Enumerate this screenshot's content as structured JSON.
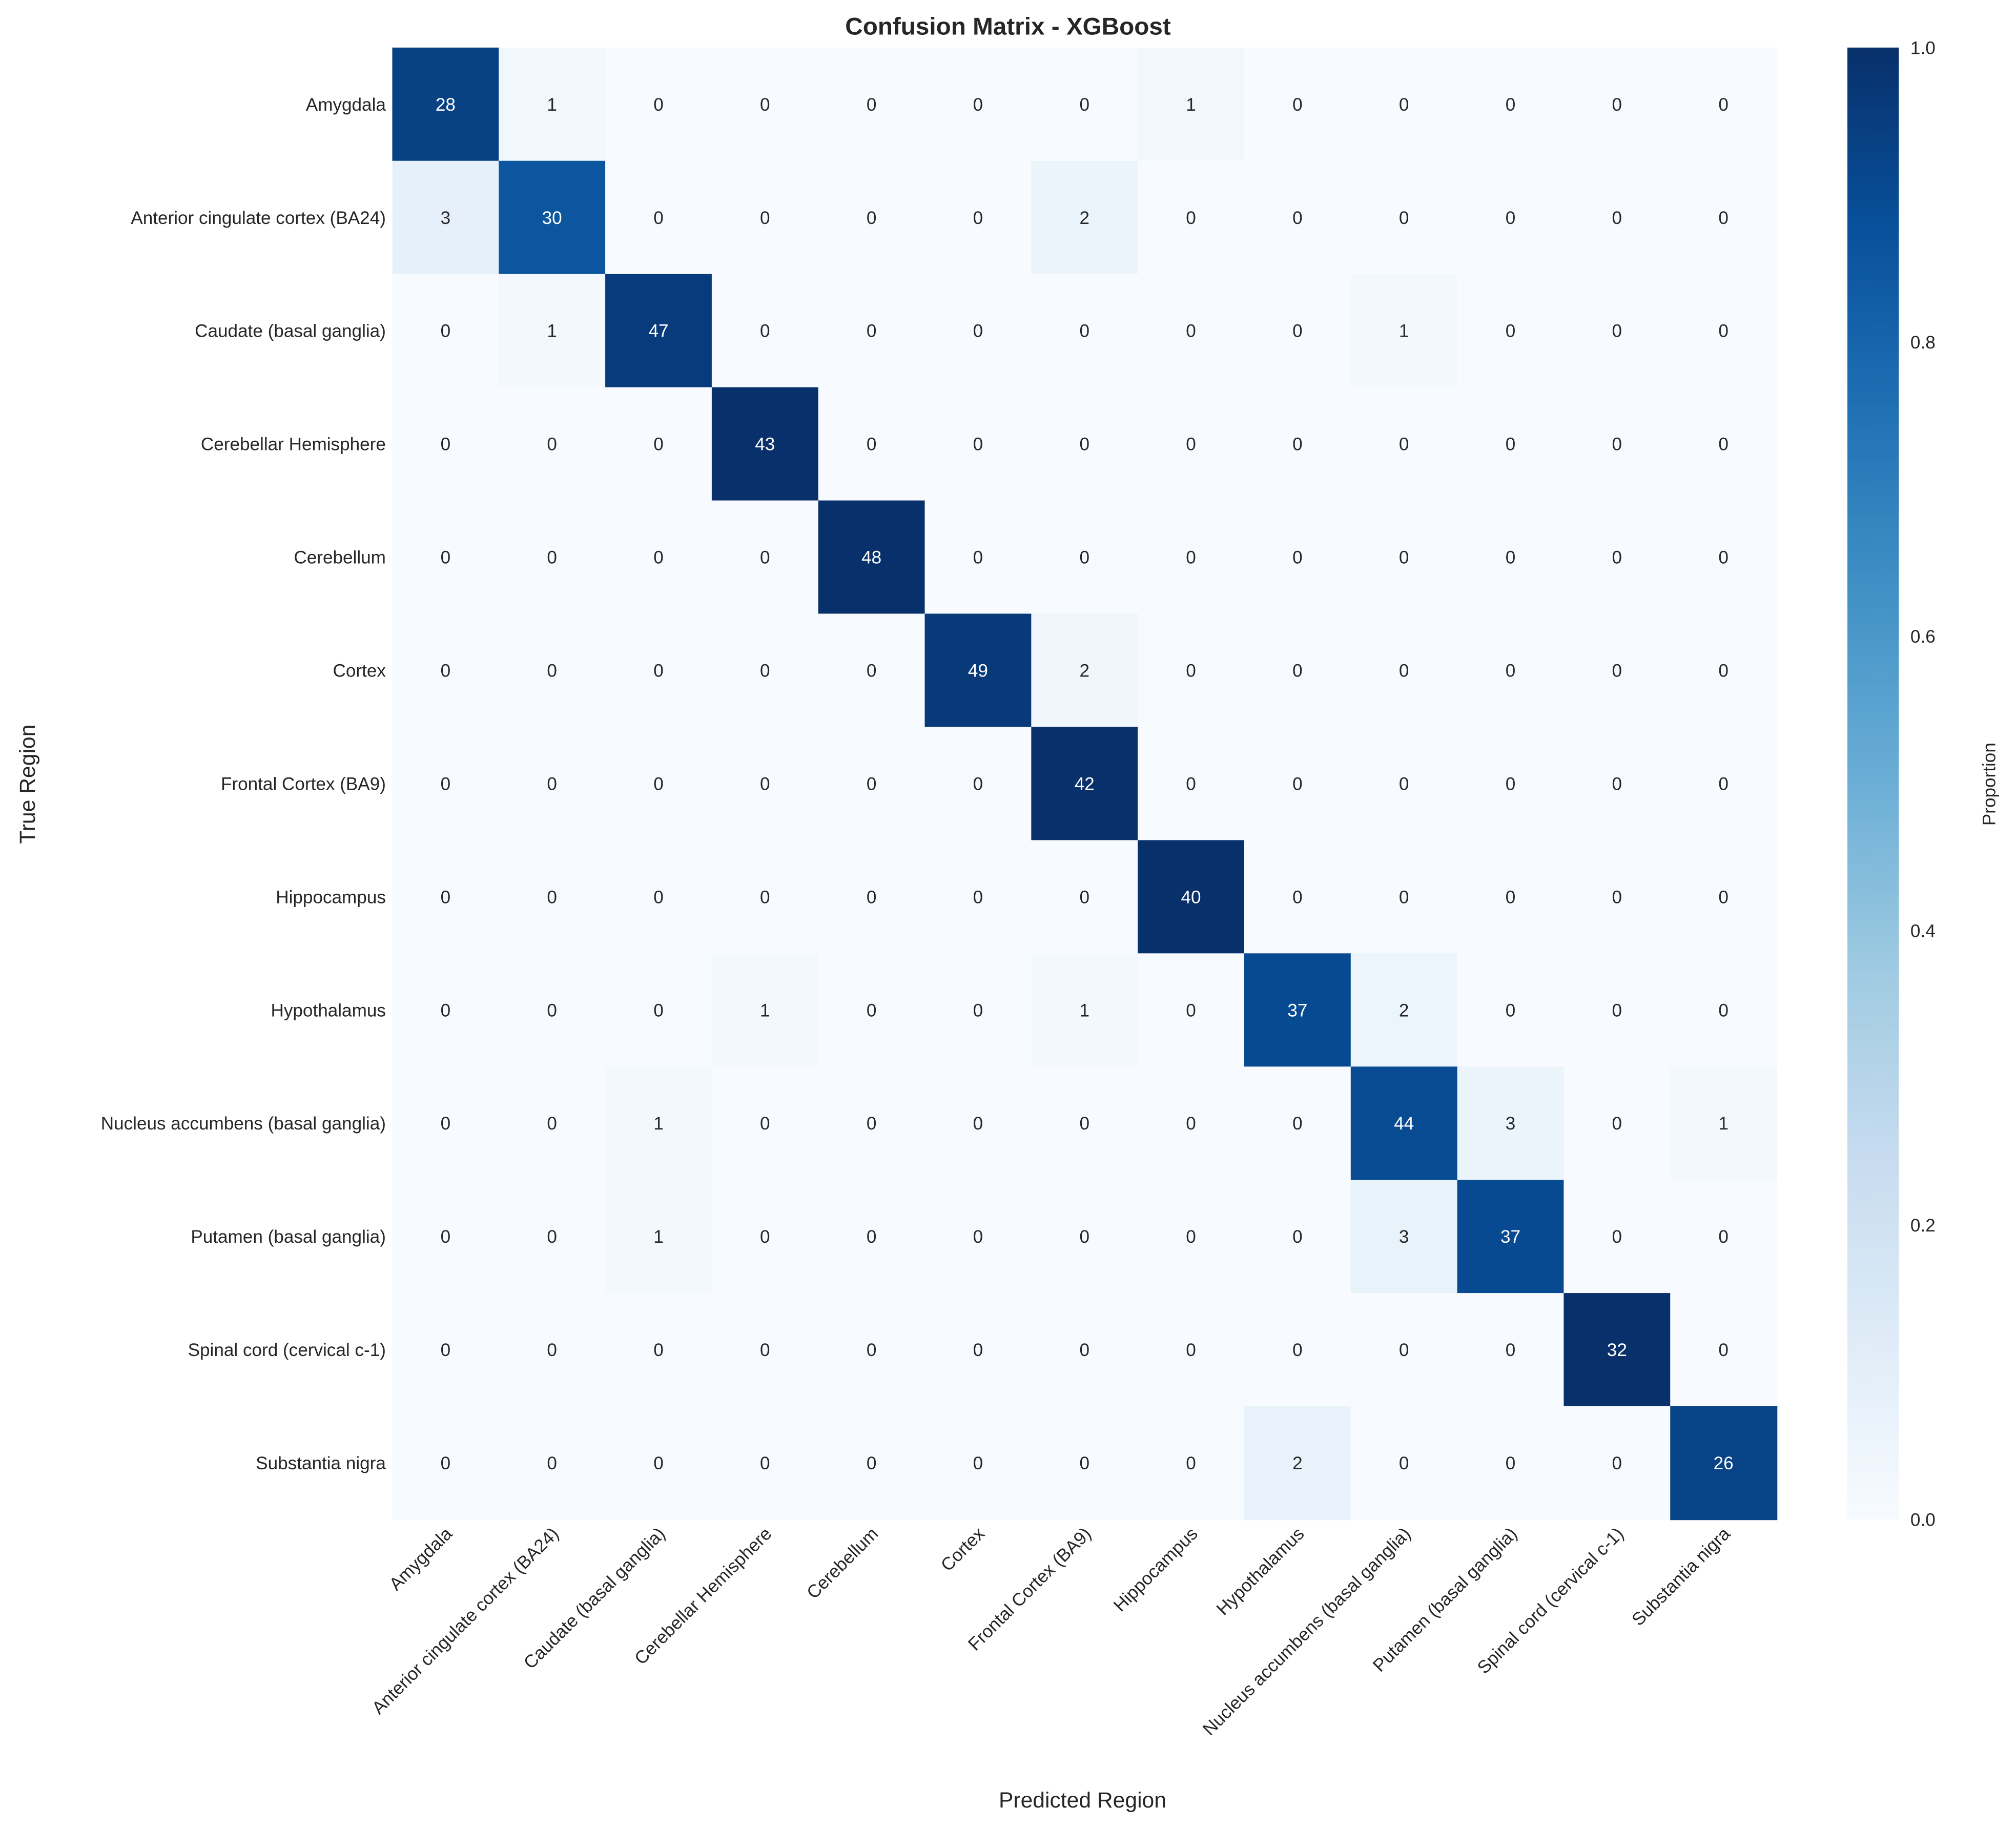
{
  "chart_data": {
    "type": "heatmap",
    "title": "Confusion Matrix - XGBoost",
    "xlabel": "Predicted Region",
    "ylabel": "True Region",
    "colorbar_label": "Proportion",
    "colormap": "Blues",
    "colorbar_range": [
      0.0,
      1.0
    ],
    "colorbar_ticks": [
      "0.0",
      "0.2",
      "0.4",
      "0.6",
      "0.8",
      "1.0"
    ],
    "color_normalization": "row proportion",
    "labels": [
      "Amygdala",
      "Anterior cingulate cortex (BA24)",
      "Caudate (basal ganglia)",
      "Cerebellar Hemisphere",
      "Cerebellum",
      "Cortex",
      "Frontal Cortex (BA9)",
      "Hippocampus",
      "Hypothalamus",
      "Nucleus accumbens (basal ganglia)",
      "Putamen (basal ganglia)",
      "Spinal cord (cervical c-1)",
      "Substantia nigra"
    ],
    "matrix": [
      [
        28,
        1,
        0,
        0,
        0,
        0,
        0,
        1,
        0,
        0,
        0,
        0,
        0
      ],
      [
        3,
        30,
        0,
        0,
        0,
        0,
        2,
        0,
        0,
        0,
        0,
        0,
        0
      ],
      [
        0,
        1,
        47,
        0,
        0,
        0,
        0,
        0,
        0,
        1,
        0,
        0,
        0
      ],
      [
        0,
        0,
        0,
        43,
        0,
        0,
        0,
        0,
        0,
        0,
        0,
        0,
        0
      ],
      [
        0,
        0,
        0,
        0,
        48,
        0,
        0,
        0,
        0,
        0,
        0,
        0,
        0
      ],
      [
        0,
        0,
        0,
        0,
        0,
        49,
        2,
        0,
        0,
        0,
        0,
        0,
        0
      ],
      [
        0,
        0,
        0,
        0,
        0,
        0,
        42,
        0,
        0,
        0,
        0,
        0,
        0
      ],
      [
        0,
        0,
        0,
        0,
        0,
        0,
        0,
        40,
        0,
        0,
        0,
        0,
        0
      ],
      [
        0,
        0,
        0,
        1,
        0,
        0,
        1,
        0,
        37,
        2,
        0,
        0,
        0
      ],
      [
        0,
        0,
        1,
        0,
        0,
        0,
        0,
        0,
        0,
        44,
        3,
        0,
        1
      ],
      [
        0,
        0,
        1,
        0,
        0,
        0,
        0,
        0,
        0,
        3,
        37,
        0,
        0
      ],
      [
        0,
        0,
        0,
        0,
        0,
        0,
        0,
        0,
        0,
        0,
        0,
        32,
        0
      ],
      [
        0,
        0,
        0,
        0,
        0,
        0,
        0,
        0,
        2,
        0,
        0,
        0,
        26
      ]
    ]
  }
}
